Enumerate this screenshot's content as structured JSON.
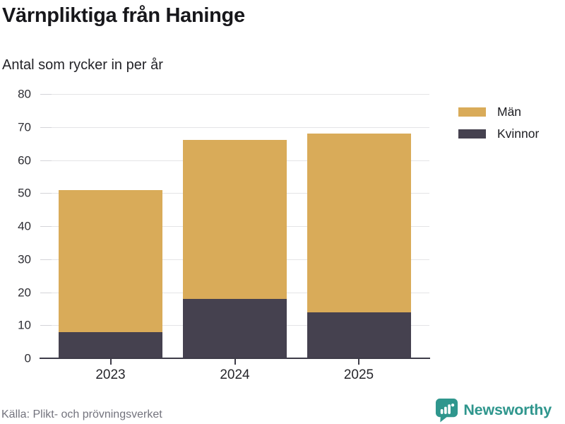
{
  "header": {
    "title": "Värnpliktiga från Haninge",
    "subtitle": "Antal som rycker in per år"
  },
  "chart_data": {
    "type": "bar",
    "stacked": true,
    "title": "Värnpliktiga från Haninge",
    "subtitle": "Antal som rycker in per år",
    "categories": [
      "2023",
      "2024",
      "2025"
    ],
    "series": [
      {
        "name": "Män",
        "color": "#d9ab59",
        "values": [
          43,
          48,
          54
        ]
      },
      {
        "name": "Kvinnor",
        "color": "#45414f",
        "values": [
          8,
          18,
          14
        ]
      }
    ],
    "stack_totals": [
      51,
      66,
      68
    ],
    "xlabel": "",
    "ylabel": "",
    "ylim": [
      0,
      80
    ],
    "yticks": [
      0,
      10,
      20,
      30,
      40,
      50,
      60,
      70,
      80
    ],
    "grid": true,
    "legend_position": "top-right"
  },
  "footer": {
    "source": "Källa: Plikt- och prövningsverket",
    "brand": "Newsworthy"
  },
  "colors": {
    "men_bar": "#d9ab59",
    "women_bar": "#45414f",
    "axis": "#3e3c48",
    "gridline": "#e4e4e6",
    "brand_teal": "#2f968d",
    "title_text": "#17171b",
    "source_text": "#73737d"
  }
}
